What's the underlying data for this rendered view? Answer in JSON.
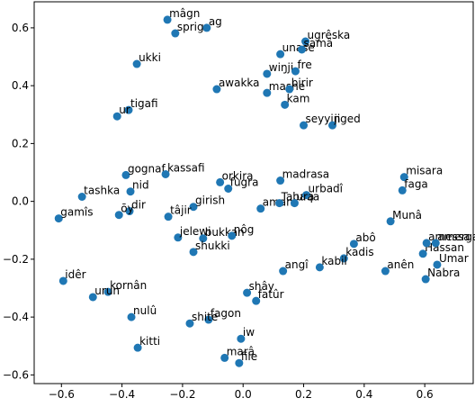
{
  "chart_data": {
    "type": "scatter",
    "color": "#1f77b4",
    "labels": [
      "mâgn",
      "sprig",
      "ag",
      "ukki",
      "ugrêska",
      "unase",
      "samâ",
      "wiŋji",
      "fre",
      "awakka",
      "mashe",
      "birir",
      "kam",
      "seyyin",
      "jiged",
      "tigafi",
      "ur",
      "gognaf",
      "kassafi",
      "nid",
      "tashka",
      "orkira",
      "fugra",
      "madrasa",
      "misara",
      "faga",
      "girish",
      "dir",
      "ōy",
      "gamîs",
      "tâjir",
      "aman",
      "Tabaqa",
      "urbadî",
      "ura",
      "Munâ",
      "jelewi",
      "bukkan",
      "nôg",
      "shukki",
      "abô",
      "kadis",
      "kabil",
      "angî",
      "Hassan",
      "amessa",
      "amerga",
      "Umar",
      "Nabra",
      "anên",
      "idêr",
      "kornân",
      "urun",
      "shây",
      "fatûr",
      "nulû",
      "fagon",
      "shite",
      "iw",
      "kitti",
      "marâ",
      "file"
    ],
    "x": [
      -0.25,
      -0.224,
      -0.12,
      -0.351,
      0.206,
      0.123,
      0.194,
      0.079,
      0.173,
      -0.087,
      0.079,
      0.153,
      0.138,
      0.2,
      0.295,
      -0.378,
      -0.416,
      -0.387,
      -0.256,
      -0.372,
      -0.532,
      -0.076,
      -0.049,
      0.123,
      0.532,
      0.526,
      -0.164,
      -0.375,
      -0.41,
      -0.609,
      -0.247,
      0.058,
      0.12,
      0.209,
      0.17,
      0.487,
      -0.215,
      -0.132,
      -0.037,
      -0.164,
      0.366,
      0.333,
      0.253,
      0.132,
      0.594,
      0.606,
      0.636,
      0.641,
      0.603,
      0.47,
      -0.594,
      -0.446,
      -0.496,
      0.013,
      0.043,
      -0.369,
      -0.114,
      -0.176,
      -0.007,
      -0.348,
      -0.061,
      -0.013
    ],
    "y": [
      0.628,
      0.581,
      0.6,
      0.475,
      0.553,
      0.509,
      0.525,
      0.441,
      0.45,
      0.388,
      0.375,
      0.388,
      0.334,
      0.263,
      0.263,
      0.316,
      0.294,
      0.091,
      0.094,
      0.034,
      0.016,
      0.066,
      0.044,
      0.072,
      0.084,
      0.038,
      -0.019,
      -0.034,
      -0.047,
      -0.059,
      -0.053,
      -0.025,
      -0.006,
      0.022,
      -0.006,
      -0.069,
      -0.125,
      -0.128,
      -0.119,
      -0.175,
      -0.147,
      -0.197,
      -0.228,
      -0.241,
      -0.181,
      -0.144,
      -0.144,
      -0.219,
      -0.269,
      -0.241,
      -0.275,
      -0.313,
      -0.331,
      -0.316,
      -0.344,
      -0.4,
      -0.409,
      -0.422,
      -0.475,
      -0.506,
      -0.541,
      -0.559
    ],
    "xlim": [
      -0.69,
      0.76
    ],
    "ylim": [
      -0.63,
      0.69
    ],
    "xticks": [
      {
        "value": -0.6,
        "label": "−0.6"
      },
      {
        "value": -0.4,
        "label": "−0.4"
      },
      {
        "value": -0.2,
        "label": "−0.2"
      },
      {
        "value": 0,
        "label": "0.0"
      },
      0.2,
      0.4,
      0.6
    ],
    "yticks": [
      {
        "value": -0.6,
        "label": "−0.6"
      },
      {
        "value": -0.4,
        "label": "−0.4"
      },
      {
        "value": -0.2,
        "label": "−0.2"
      },
      {
        "value": 0,
        "label": "0.0"
      },
      0.2,
      0.4,
      0.6
    ]
  }
}
